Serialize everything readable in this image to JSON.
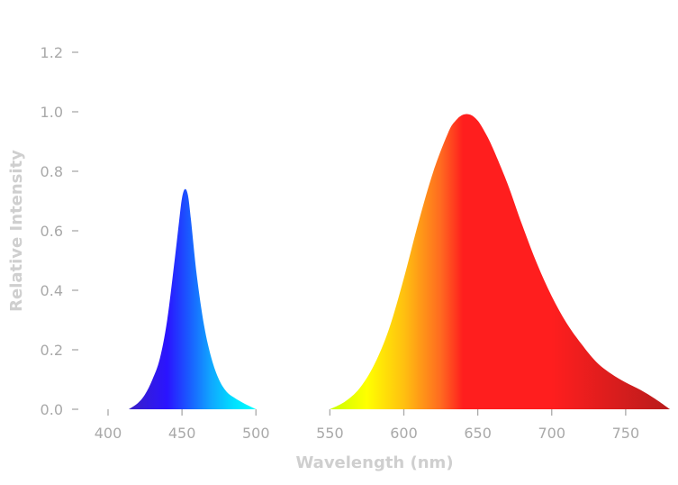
{
  "chart_data": {
    "type": "area",
    "xlabel": "Wavelength (nm)",
    "ylabel": "Relative Intensity",
    "xlim": [
      380,
      780
    ],
    "ylim": [
      0,
      1.25
    ],
    "x_ticks": [
      "400",
      "450",
      "500",
      "550",
      "600",
      "650",
      "700",
      "750"
    ],
    "y_ticks": [
      "0.0",
      "0.2",
      "0.4",
      "0.6",
      "0.8",
      "1.0",
      "1.2"
    ],
    "grid": false,
    "legend": "none",
    "series": [
      {
        "x": [
          414,
          420,
          425,
          430,
          435,
          440,
          445,
          448,
          450,
          452,
          454,
          456,
          460,
          465,
          470,
          475,
          480,
          485,
          490,
          495,
          500
        ],
        "y": [
          0.0,
          0.02,
          0.05,
          0.1,
          0.17,
          0.3,
          0.5,
          0.63,
          0.71,
          0.74,
          0.72,
          0.64,
          0.45,
          0.28,
          0.17,
          0.1,
          0.06,
          0.04,
          0.025,
          0.012,
          0.0
        ],
        "gradient": [
          {
            "wavelength": 415,
            "color": "#3a20c8"
          },
          {
            "wavelength": 440,
            "color": "#2a14ff"
          },
          {
            "wavelength": 455,
            "color": "#1a5cff"
          },
          {
            "wavelength": 470,
            "color": "#10a8ff"
          },
          {
            "wavelength": 485,
            "color": "#00e0ff"
          },
          {
            "wavelength": 500,
            "color": "#00ffff"
          }
        ]
      },
      {
        "x": [
          550,
          560,
          570,
          580,
          590,
          600,
          610,
          620,
          630,
          635,
          640,
          645,
          650,
          655,
          660,
          670,
          680,
          690,
          700,
          710,
          720,
          730,
          740,
          750,
          760,
          770,
          780
        ],
        "y": [
          0.0,
          0.025,
          0.07,
          0.15,
          0.27,
          0.44,
          0.63,
          0.8,
          0.93,
          0.97,
          0.99,
          0.99,
          0.97,
          0.93,
          0.88,
          0.76,
          0.62,
          0.49,
          0.38,
          0.29,
          0.22,
          0.16,
          0.12,
          0.09,
          0.065,
          0.035,
          0.0
        ],
        "gradient": [
          {
            "wavelength": 550,
            "color": "#c8ff00"
          },
          {
            "wavelength": 575,
            "color": "#ffff00"
          },
          {
            "wavelength": 600,
            "color": "#ffc010"
          },
          {
            "wavelength": 625,
            "color": "#ff6a20"
          },
          {
            "wavelength": 640,
            "color": "#ff1e1e"
          },
          {
            "wavelength": 700,
            "color": "#ff1e1e"
          },
          {
            "wavelength": 780,
            "color": "#b81c1c"
          }
        ]
      }
    ]
  }
}
